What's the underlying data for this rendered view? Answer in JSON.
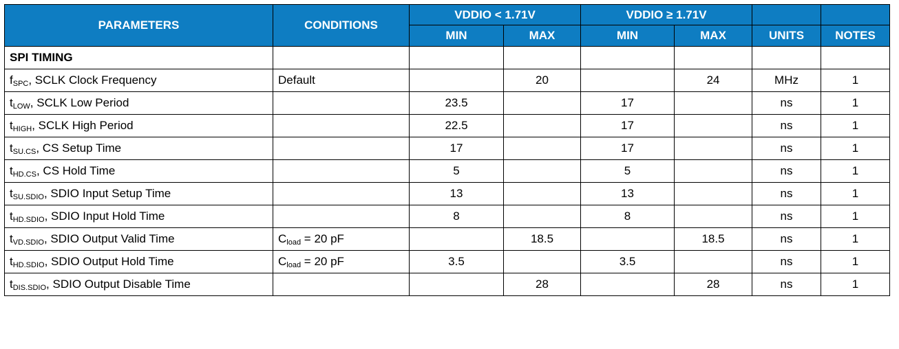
{
  "header": {
    "parameters": "PARAMETERS",
    "conditions": "CONDITIONS",
    "group_low": "VDDIO < 1.71V",
    "group_high": "VDDIO ≥ 1.71V",
    "min": "MIN",
    "max": "MAX",
    "units": "UNITS",
    "notes": "NOTES"
  },
  "section": "SPI TIMING",
  "rows": [
    {
      "sym": "f",
      "sub": "SPC",
      "desc": ", SCLK Clock Frequency",
      "cond_pre": "Default",
      "cond_sub": "",
      "cond_post": "",
      "min_low": "",
      "max_low": "20",
      "min_high": "",
      "max_high": "24",
      "units": "MHz",
      "notes": "1"
    },
    {
      "sym": "t",
      "sub": "LOW",
      "desc": ", SCLK Low Period",
      "cond_pre": "",
      "cond_sub": "",
      "cond_post": "",
      "min_low": "23.5",
      "max_low": "",
      "min_high": "17",
      "max_high": "",
      "units": "ns",
      "notes": "1"
    },
    {
      "sym": "t",
      "sub": "HIGH",
      "desc": ", SCLK High Period",
      "cond_pre": "",
      "cond_sub": "",
      "cond_post": "",
      "min_low": "22.5",
      "max_low": "",
      "min_high": "17",
      "max_high": "",
      "units": "ns",
      "notes": "1"
    },
    {
      "sym": "t",
      "sub": "SU.CS",
      "desc": ", CS Setup Time",
      "cond_pre": "",
      "cond_sub": "",
      "cond_post": "",
      "min_low": "17",
      "max_low": "",
      "min_high": "17",
      "max_high": "",
      "units": "ns",
      "notes": "1"
    },
    {
      "sym": "t",
      "sub": "HD.CS",
      "desc": ", CS Hold Time",
      "cond_pre": "",
      "cond_sub": "",
      "cond_post": "",
      "min_low": "5",
      "max_low": "",
      "min_high": "5",
      "max_high": "",
      "units": "ns",
      "notes": "1"
    },
    {
      "sym": "t",
      "sub": "SU.SDIO",
      "desc": ", SDIO Input Setup Time",
      "cond_pre": "",
      "cond_sub": "",
      "cond_post": "",
      "min_low": "13",
      "max_low": "",
      "min_high": "13",
      "max_high": "",
      "units": "ns",
      "notes": "1"
    },
    {
      "sym": "t",
      "sub": "HD.SDIO",
      "desc": ", SDIO Input Hold Time",
      "cond_pre": "",
      "cond_sub": "",
      "cond_post": "",
      "min_low": "8",
      "max_low": "",
      "min_high": "8",
      "max_high": "",
      "units": "ns",
      "notes": "1"
    },
    {
      "sym": "t",
      "sub": "VD.SDIO",
      "desc": ", SDIO Output Valid Time",
      "cond_pre": "C",
      "cond_sub": "load",
      "cond_post": " = 20 pF",
      "min_low": "",
      "max_low": "18.5",
      "min_high": "",
      "max_high": "18.5",
      "units": "ns",
      "notes": "1"
    },
    {
      "sym": "t",
      "sub": "HD.SDIO",
      "desc": ", SDIO Output Hold Time",
      "cond_pre": "C",
      "cond_sub": "load",
      "cond_post": " = 20 pF",
      "min_low": "3.5",
      "max_low": "",
      "min_high": "3.5",
      "max_high": "",
      "units": "ns",
      "notes": "1"
    },
    {
      "sym": "t",
      "sub": "DIS.SDIO",
      "desc": ", SDIO Output Disable Time",
      "cond_pre": "",
      "cond_sub": "",
      "cond_post": "",
      "min_low": "",
      "max_low": "28",
      "min_high": "",
      "max_high": "28",
      "units": "ns",
      "notes": "1"
    }
  ]
}
